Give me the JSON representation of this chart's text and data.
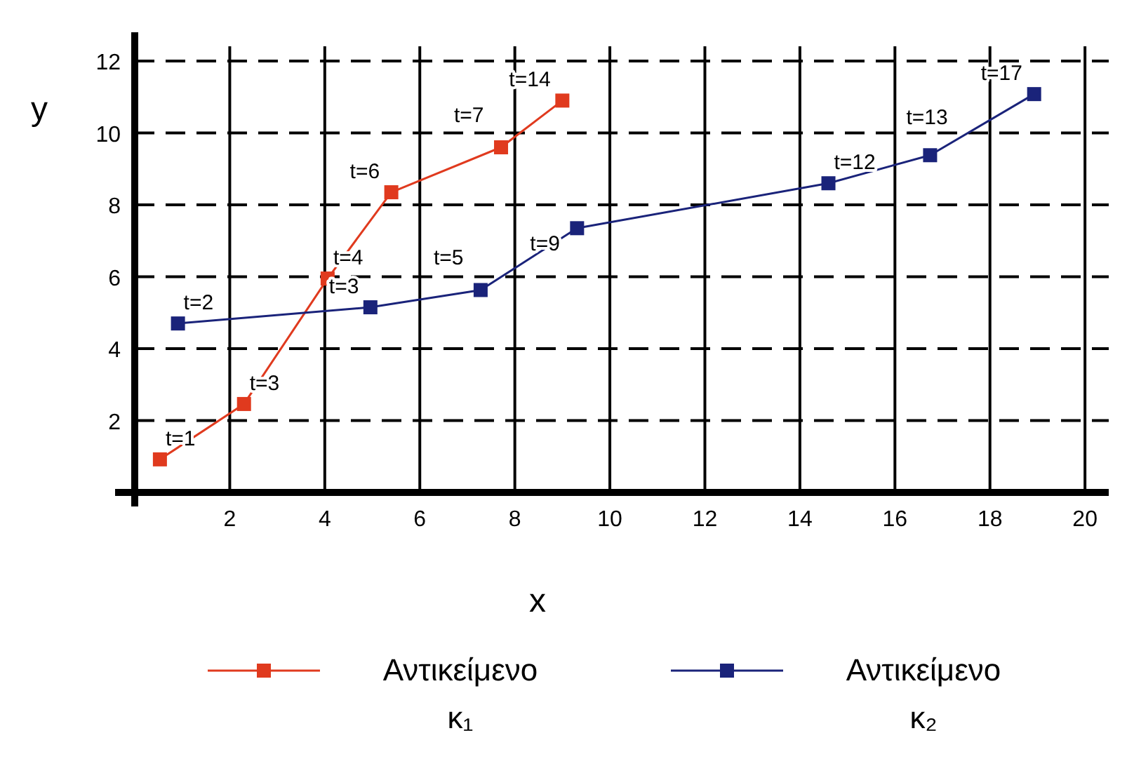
{
  "chart_data": {
    "type": "line",
    "xlabel": "x",
    "ylabel": "y",
    "xlim": [
      0,
      20.5
    ],
    "ylim": [
      0,
      12.8
    ],
    "xticks": [
      2,
      4,
      6,
      8,
      10,
      12,
      14,
      16,
      18,
      20
    ],
    "yticks": [
      2,
      4,
      6,
      8,
      10,
      12
    ],
    "grid": true,
    "legend": "bottom",
    "marker": "square",
    "line_style": "solid",
    "series": [
      {
        "name": "Αντικείμενο κ₁",
        "color": "#e03a1e",
        "x": [
          0.53,
          2.3,
          4.06,
          5.4,
          7.71,
          9.0
        ],
        "values": [
          0.92,
          2.46,
          5.95,
          8.35,
          9.6,
          10.9
        ]
      },
      {
        "name": "Αντικείμενο κ₂",
        "color": "#1a237a",
        "x": [
          0.91,
          4.96,
          7.28,
          9.31,
          14.6,
          16.74,
          18.93
        ],
        "values": [
          4.7,
          5.15,
          5.63,
          7.35,
          8.6,
          9.38,
          11.08
        ]
      }
    ],
    "annotations": [
      {
        "text": "t=1",
        "x": 0.53,
        "y": 0.92
      },
      {
        "text": "t=3",
        "x": 2.3,
        "y": 2.46
      },
      {
        "text": "t=4",
        "x": 4.06,
        "y": 5.95
      },
      {
        "text": "t=6",
        "x": 5.4,
        "y": 8.35
      },
      {
        "text": "t=7",
        "x": 7.71,
        "y": 9.6
      },
      {
        "text": "t=14",
        "x": 9.0,
        "y": 10.9
      },
      {
        "text": "t=2",
        "x": 0.91,
        "y": 4.7
      },
      {
        "text": "t=3",
        "x": 4.96,
        "y": 5.15
      },
      {
        "text": "t=5",
        "x": 7.28,
        "y": 5.63
      },
      {
        "text": "t=9",
        "x": 9.31,
        "y": 7.35
      },
      {
        "text": "t=12",
        "x": 14.6,
        "y": 8.6
      },
      {
        "text": "t=13",
        "x": 16.74,
        "y": 9.38
      },
      {
        "text": "t=17",
        "x": 18.93,
        "y": 11.08
      }
    ]
  }
}
